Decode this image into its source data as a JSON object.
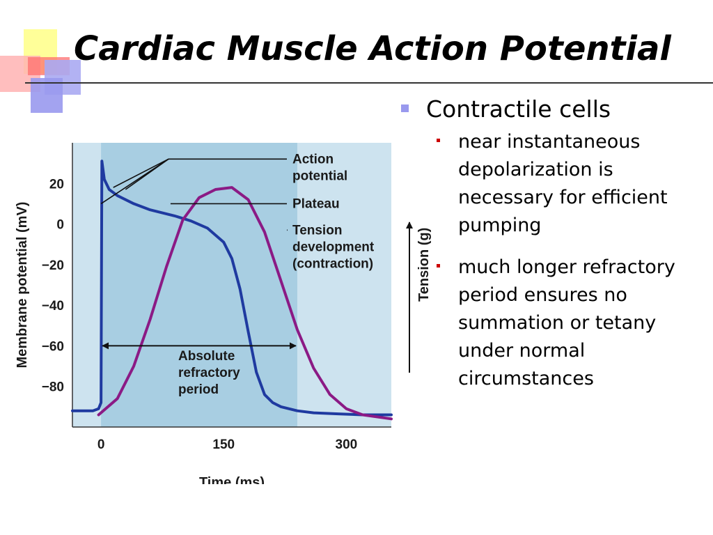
{
  "slide": {
    "title": "Cardiac Muscle Action Potential",
    "bullet": {
      "text": "Contractile cells",
      "sub": [
        "near instantaneous depolarization is necessary for efficient pumping",
        "much longer refractory period ensures no summation or tetany under normal circumstances"
      ]
    },
    "colors": {
      "bullet": "#9999ee",
      "sub_bullet": "#cc0000",
      "accent_squares": [
        "#ffff99",
        "#ffb3b3",
        "#aaaaf2"
      ]
    }
  },
  "chart_data": {
    "type": "line",
    "xlabel": "Time (ms)",
    "ylabel": "Membrane potential (mV)",
    "y2label": "Tension (g)",
    "xticks": [
      0,
      150,
      300
    ],
    "yticks": [
      20,
      0,
      -20,
      -40,
      -60,
      -80
    ],
    "xlim": [
      -35,
      355
    ],
    "ylim": [
      -100,
      40
    ],
    "colors": {
      "action_potential": "#1f3aa0",
      "tension": "#8b1a85",
      "background": "#cde3ef",
      "refractory_band": "#a8cee2"
    },
    "series": [
      {
        "name": "Action potential",
        "x": [
          -35,
          -10,
          -3,
          0,
          1,
          4,
          10,
          20,
          40,
          60,
          90,
          110,
          130,
          150,
          160,
          170,
          180,
          190,
          200,
          210,
          220,
          240,
          260,
          290,
          320,
          355
        ],
        "y": [
          -92,
          -92,
          -91,
          -88,
          31,
          22,
          17,
          14,
          10,
          7,
          4,
          1.5,
          -2,
          -9,
          -17,
          -32,
          -53,
          -73,
          -84,
          -88,
          -90,
          -92,
          -93,
          -93.5,
          -94,
          -94
        ]
      },
      {
        "name": "Tension development (contraction)",
        "x": [
          -3,
          20,
          40,
          60,
          80,
          100,
          120,
          140,
          160,
          180,
          200,
          220,
          240,
          260,
          280,
          300,
          320,
          355
        ],
        "y": [
          -94,
          -86,
          -70,
          -47,
          -21,
          2,
          13,
          17,
          18,
          12,
          -4,
          -28,
          -52,
          -71,
          -84,
          -91,
          -94,
          -96
        ]
      }
    ],
    "annotations": [
      {
        "label": "Action potential",
        "lines": [
          "Action",
          "potential"
        ]
      },
      {
        "label": "Plateau",
        "lines": [
          "Plateau"
        ]
      },
      {
        "label": "Tension development (contraction)",
        "lines": [
          "Tension",
          "development",
          "(contraction)"
        ]
      },
      {
        "label": "Absolute refractory period",
        "lines": [
          "Absolute",
          "refractory",
          "period"
        ],
        "x_range": [
          0,
          240
        ]
      }
    ],
    "refractory_band": [
      0,
      240
    ]
  }
}
